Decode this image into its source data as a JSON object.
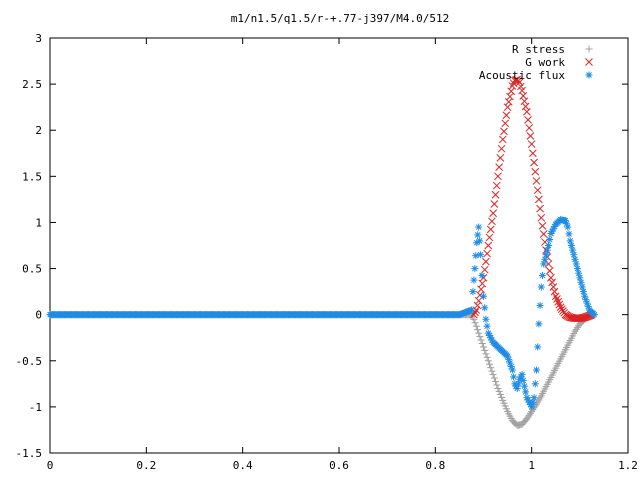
{
  "chart_data": {
    "type": "scatter",
    "title": "m1/n1.5/q1.5/r-+.77-j397/M4.0/512",
    "xlabel": "",
    "ylabel": "",
    "xlim": [
      0,
      1.2
    ],
    "ylim": [
      -1.5,
      3
    ],
    "x_ticks": [
      "0",
      "0.2",
      "0.4",
      "0.6",
      "0.8",
      "1",
      "1.2"
    ],
    "y_ticks": [
      "3",
      "2.5",
      "2",
      "1.5",
      "1",
      "0.5",
      "0",
      "-0.5",
      "-1",
      "-1.5"
    ],
    "grid": false,
    "legend_position": "top-right",
    "colors": {
      "r_stress": "#a0a0a0",
      "g_work": "#dd2222",
      "acoustic_flux": "#1e8ce6"
    },
    "series": [
      {
        "name": "R stress",
        "marker": "plus",
        "color": "#a0a0a0",
        "points": [
          [
            0.0,
            0.0
          ],
          [
            0.1,
            0.0
          ],
          [
            0.2,
            0.0
          ],
          [
            0.3,
            0.0
          ],
          [
            0.4,
            0.0
          ],
          [
            0.5,
            0.0
          ],
          [
            0.6,
            0.0
          ],
          [
            0.7,
            0.0
          ],
          [
            0.8,
            0.0
          ],
          [
            0.85,
            0.0
          ],
          [
            0.875,
            0.0
          ],
          [
            0.88,
            -0.05
          ],
          [
            0.89,
            -0.2
          ],
          [
            0.9,
            -0.35
          ],
          [
            0.91,
            -0.5
          ],
          [
            0.92,
            -0.65
          ],
          [
            0.93,
            -0.8
          ],
          [
            0.94,
            -0.93
          ],
          [
            0.95,
            -1.05
          ],
          [
            0.96,
            -1.15
          ],
          [
            0.97,
            -1.2
          ],
          [
            0.98,
            -1.19
          ],
          [
            0.99,
            -1.13
          ],
          [
            1.0,
            -1.05
          ],
          [
            1.01,
            -0.97
          ],
          [
            1.02,
            -0.88
          ],
          [
            1.03,
            -0.78
          ],
          [
            1.04,
            -0.68
          ],
          [
            1.05,
            -0.58
          ],
          [
            1.06,
            -0.48
          ],
          [
            1.07,
            -0.38
          ],
          [
            1.08,
            -0.28
          ],
          [
            1.09,
            -0.18
          ],
          [
            1.1,
            -0.1
          ],
          [
            1.11,
            -0.05
          ],
          [
            1.12,
            -0.02
          ],
          [
            1.13,
            0.0
          ]
        ]
      },
      {
        "name": "G work",
        "marker": "cross",
        "color": "#dd2222",
        "points": [
          [
            0.88,
            0.0
          ],
          [
            0.885,
            0.05
          ],
          [
            0.89,
            0.15
          ],
          [
            0.9,
            0.4
          ],
          [
            0.91,
            0.75
          ],
          [
            0.92,
            1.1
          ],
          [
            0.93,
            1.5
          ],
          [
            0.94,
            1.9
          ],
          [
            0.95,
            2.25
          ],
          [
            0.96,
            2.48
          ],
          [
            0.965,
            2.54
          ],
          [
            0.97,
            2.55
          ],
          [
            0.975,
            2.52
          ],
          [
            0.98,
            2.43
          ],
          [
            0.99,
            2.2
          ],
          [
            1.0,
            1.85
          ],
          [
            1.01,
            1.45
          ],
          [
            1.02,
            1.05
          ],
          [
            1.03,
            0.7
          ],
          [
            1.04,
            0.4
          ],
          [
            1.05,
            0.2
          ],
          [
            1.06,
            0.08
          ],
          [
            1.07,
            0.0
          ],
          [
            1.08,
            -0.03
          ],
          [
            1.09,
            -0.04
          ],
          [
            1.1,
            -0.04
          ],
          [
            1.11,
            -0.03
          ],
          [
            1.12,
            -0.01
          ],
          [
            1.125,
            0.0
          ]
        ]
      },
      {
        "name": "Acoustic flux",
        "marker": "star",
        "color": "#1e8ce6",
        "points": [
          [
            0.0,
            0.0
          ],
          [
            0.1,
            0.0
          ],
          [
            0.2,
            0.0
          ],
          [
            0.3,
            0.0
          ],
          [
            0.4,
            0.0
          ],
          [
            0.5,
            0.0
          ],
          [
            0.6,
            0.0
          ],
          [
            0.7,
            0.0
          ],
          [
            0.8,
            0.0
          ],
          [
            0.85,
            0.0
          ],
          [
            0.875,
            0.05
          ],
          [
            0.878,
            0.25
          ],
          [
            0.882,
            0.5
          ],
          [
            0.886,
            0.78
          ],
          [
            0.89,
            0.95
          ],
          [
            0.894,
            0.65
          ],
          [
            0.9,
            0.2
          ],
          [
            0.905,
            -0.05
          ],
          [
            0.91,
            -0.2
          ],
          [
            0.915,
            -0.25
          ],
          [
            0.92,
            -0.3
          ],
          [
            0.93,
            -0.35
          ],
          [
            0.94,
            -0.4
          ],
          [
            0.95,
            -0.45
          ],
          [
            0.96,
            -0.6
          ],
          [
            0.965,
            -0.75
          ],
          [
            0.97,
            -0.8
          ],
          [
            0.975,
            -0.7
          ],
          [
            0.98,
            -0.65
          ],
          [
            0.99,
            -0.9
          ],
          [
            1.0,
            -1.0
          ],
          [
            1.005,
            -0.9
          ],
          [
            1.01,
            -0.6
          ],
          [
            1.015,
            -0.1
          ],
          [
            1.02,
            0.3
          ],
          [
            1.025,
            0.55
          ],
          [
            1.03,
            0.65
          ],
          [
            1.035,
            0.75
          ],
          [
            1.04,
            0.88
          ],
          [
            1.05,
            0.98
          ],
          [
            1.06,
            1.03
          ],
          [
            1.07,
            1.02
          ],
          [
            1.075,
            0.95
          ],
          [
            1.08,
            0.8
          ],
          [
            1.09,
            0.6
          ],
          [
            1.1,
            0.4
          ],
          [
            1.11,
            0.2
          ],
          [
            1.12,
            0.05
          ],
          [
            1.13,
            0.0
          ]
        ]
      }
    ]
  }
}
